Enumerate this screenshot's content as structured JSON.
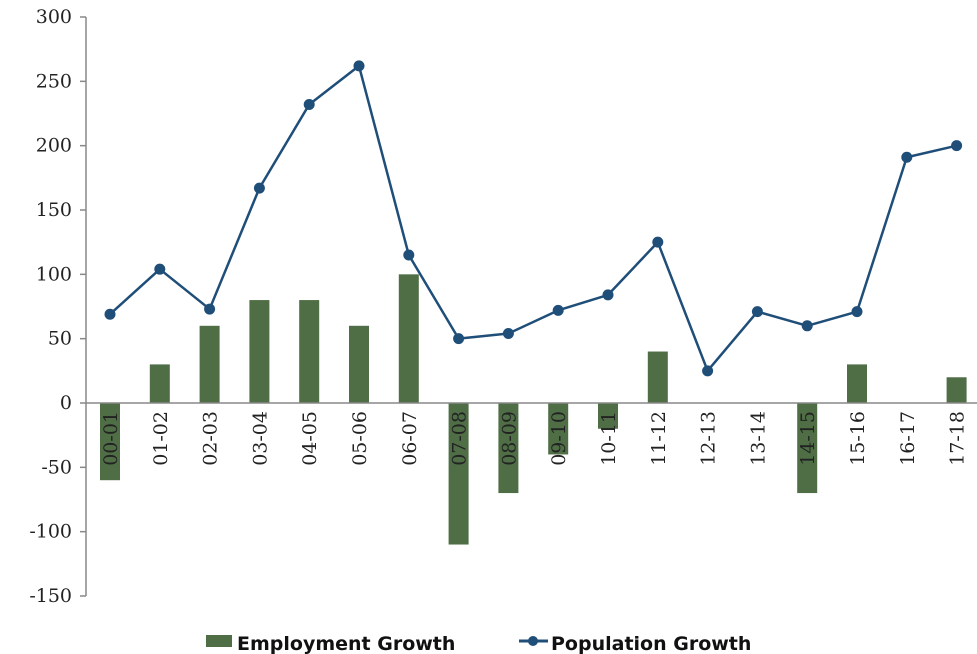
{
  "chart_data": {
    "type": "bar",
    "categories": [
      "00-01",
      "01-02",
      "02-03",
      "03-04",
      "04-05",
      "05-06",
      "06-07",
      "07-08",
      "08-09",
      "09-10",
      "10-11",
      "11-12",
      "12-13",
      "13-14",
      "14-15",
      "15-16",
      "16-17",
      "17-18"
    ],
    "series": [
      {
        "name": "Employment Growth",
        "type": "bar",
        "color": "#4f6e46",
        "values": [
          -60,
          30,
          60,
          80,
          80,
          60,
          100,
          -110,
          -70,
          -40,
          -20,
          40,
          0,
          0,
          -70,
          30,
          0,
          20
        ]
      },
      {
        "name": "Population Growth",
        "type": "line",
        "color": "#1f4e79",
        "marker": "circle",
        "values": [
          69,
          104,
          73,
          167,
          232,
          262,
          115,
          50,
          54,
          72,
          84,
          125,
          25,
          71,
          60,
          71,
          191,
          200
        ]
      }
    ],
    "yticks": [
      300,
      250,
      200,
      150,
      100,
      50,
      0,
      -50,
      -100,
      -150
    ],
    "ylim": [
      -150,
      300
    ],
    "grid": false,
    "legend_position": "bottom"
  }
}
